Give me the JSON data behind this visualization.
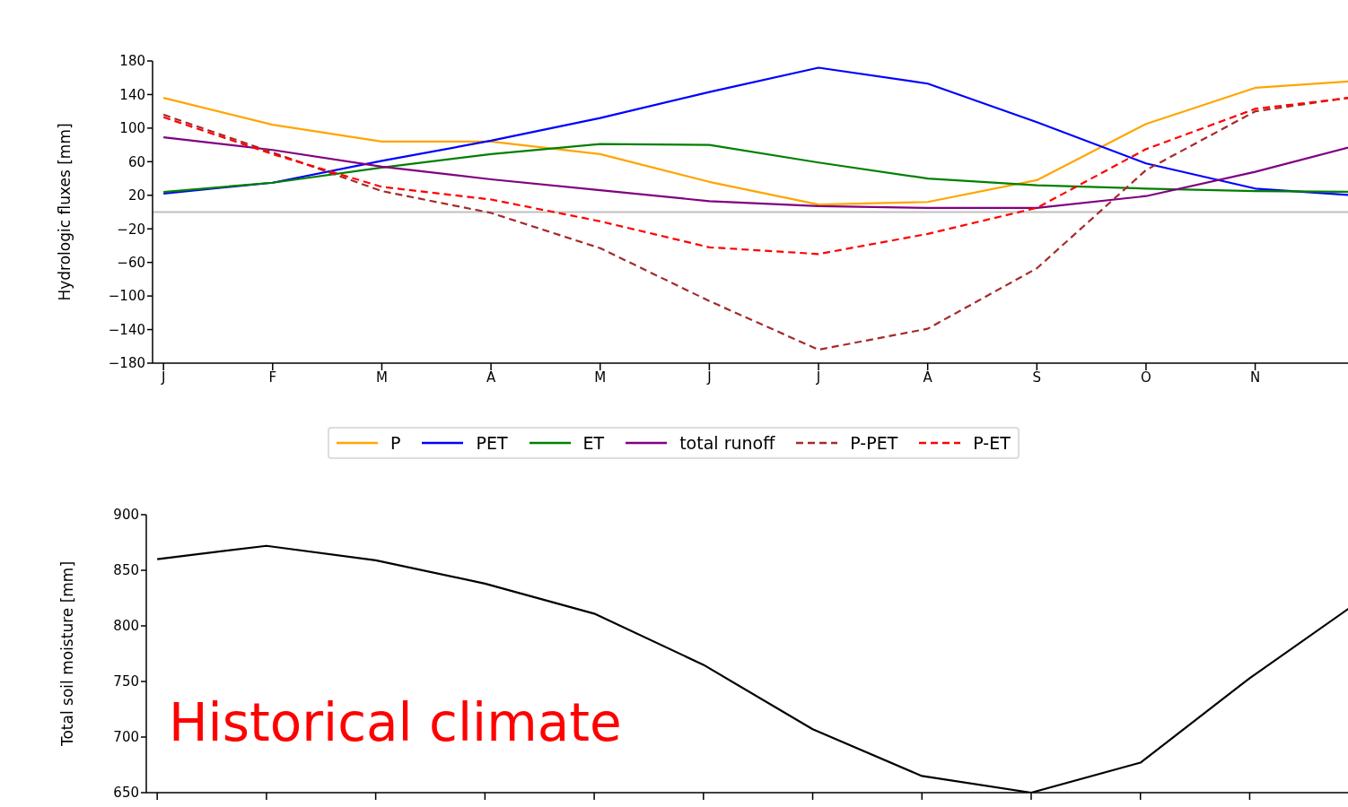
{
  "chart_data": [
    {
      "type": "line",
      "ylabel": "Hydrologic fluxes [mm]",
      "categories": [
        "J",
        "F",
        "M",
        "A",
        "M",
        "J",
        "J",
        "A",
        "S",
        "O",
        "N",
        null
      ],
      "ylim": [
        -180,
        180
      ],
      "yticks": [
        -180,
        -140,
        -100,
        -60,
        -20,
        20,
        60,
        100,
        140,
        180
      ],
      "grid": false,
      "legend": "bottom",
      "marker": "none",
      "ref_lines": [
        {
          "axis": "y",
          "value": 0,
          "color": "#c0c0c0"
        }
      ],
      "series": [
        {
          "name": "P",
          "color": "#ffa500",
          "line_style": "solid",
          "values": [
            136,
            104,
            84,
            84,
            69,
            36,
            9,
            12,
            38,
            105,
            148,
            157
          ]
        },
        {
          "name": "PET",
          "color": "#0000ff",
          "line_style": "solid",
          "values": [
            22,
            35,
            61,
            85,
            112,
            143,
            172,
            153,
            107,
            58,
            28,
            19
          ]
        },
        {
          "name": "ET",
          "color": "#008000",
          "line_style": "solid",
          "values": [
            24,
            35,
            53,
            69,
            81,
            80,
            59,
            40,
            32,
            28,
            25,
            24
          ]
        },
        {
          "name": "total runoff",
          "color": "#800080",
          "line_style": "solid",
          "values": [
            89,
            74,
            54,
            39,
            26,
            13,
            7,
            5,
            5,
            19,
            48,
            82
          ]
        },
        {
          "name": "P-PET",
          "color": "#a52a2a",
          "line_style": "dashed",
          "values": [
            116,
            71,
            25,
            -1,
            -43,
            -106,
            -164,
            -139,
            -67,
            50,
            120,
            139
          ]
        },
        {
          "name": "P-ET",
          "color": "#ff0000",
          "line_style": "dashed",
          "values": [
            113,
            69,
            30,
            15,
            -11,
            -42,
            -50,
            -26,
            5,
            75,
            123,
            138
          ]
        }
      ]
    },
    {
      "type": "line",
      "ylabel": "Total soil moisture [mm]",
      "categories": [
        null,
        null,
        null,
        null,
        null,
        null,
        null,
        null,
        null,
        null,
        null,
        null
      ],
      "ylim": [
        650,
        900
      ],
      "yticks": [
        650,
        700,
        750,
        800,
        850,
        900
      ],
      "grid": false,
      "legend": false,
      "marker": "none",
      "annotations": [
        "Historical climate"
      ],
      "series": [
        {
          "color": "#000000",
          "line_style": "solid",
          "values": [
            860,
            872,
            859,
            838,
            811,
            765,
            707,
            665,
            650,
            677,
            753,
            822
          ]
        }
      ]
    }
  ]
}
